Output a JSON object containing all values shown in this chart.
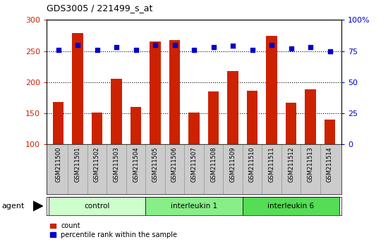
{
  "title": "GDS3005 / 221499_s_at",
  "samples": [
    "GSM211500",
    "GSM211501",
    "GSM211502",
    "GSM211503",
    "GSM211504",
    "GSM211505",
    "GSM211506",
    "GSM211507",
    "GSM211508",
    "GSM211509",
    "GSM211510",
    "GSM211511",
    "GSM211512",
    "GSM211513",
    "GSM211514"
  ],
  "count_values": [
    168,
    279,
    151,
    205,
    160,
    265,
    268,
    151,
    185,
    218,
    186,
    274,
    167,
    189,
    140
  ],
  "percentile_values": [
    76,
    80,
    76,
    78,
    76,
    80,
    80,
    76,
    78,
    79,
    76,
    80,
    77,
    78,
    75
  ],
  "groups": [
    {
      "label": "control",
      "start": 0,
      "end": 4,
      "color": "#ccffcc"
    },
    {
      "label": "interleukin 1",
      "start": 5,
      "end": 9,
      "color": "#88ee88"
    },
    {
      "label": "interleukin 6",
      "start": 10,
      "end": 14,
      "color": "#55dd55"
    }
  ],
  "bar_color": "#cc2200",
  "dot_color": "#0000cc",
  "ylim_left": [
    100,
    300
  ],
  "ylim_right": [
    0,
    100
  ],
  "yticks_left": [
    100,
    150,
    200,
    250,
    300
  ],
  "yticks_right": [
    0,
    25,
    50,
    75,
    100
  ],
  "grid_values": [
    150,
    200,
    250
  ],
  "label_area_color": "#cccccc",
  "agent_label": "agent",
  "legend_count": "count",
  "legend_percentile": "percentile rank within the sample"
}
